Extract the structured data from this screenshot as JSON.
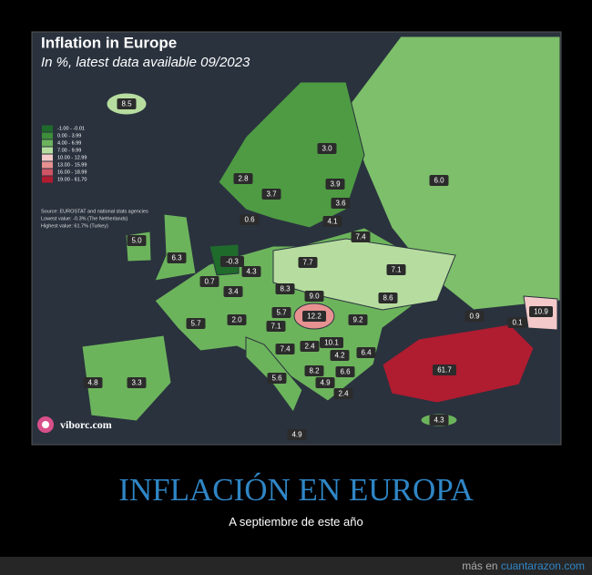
{
  "map": {
    "title": "Inflation in Europe",
    "subtitle": "In %, latest data available 09/2023",
    "legend": [
      {
        "label": "-1.00 - -0.01",
        "color": "#1f6b2c"
      },
      {
        "label": "0.00 - 3.99",
        "color": "#3d8d3a"
      },
      {
        "label": "4.00 - 6.99",
        "color": "#6cb45c"
      },
      {
        "label": "7.00 - 9.99",
        "color": "#b6dd9f"
      },
      {
        "label": "10.00 - 12.99",
        "color": "#f4c9c9"
      },
      {
        "label": "13.00 - 15.99",
        "color": "#e79191"
      },
      {
        "label": "16.00 - 18.99",
        "color": "#cf5465"
      },
      {
        "label": "19.00 - 61.70",
        "color": "#b01c30"
      }
    ],
    "notes": [
      "Source: EUROSTAT and national stats agencies",
      "Lowest value: -0.3% (The Netherlands)",
      "Highest value: 61.7% (Turkey)"
    ],
    "labels": [
      "8.5",
      "3.0",
      "2.8",
      "3.7",
      "3.9",
      "6.0",
      "3.6",
      "0.6",
      "4.1",
      "5.0",
      "7.4",
      "6.3",
      "-0.3",
      "4.3",
      "7.7",
      "7.1",
      "0.7",
      "3.4",
      "8.3",
      "9.0",
      "8.6",
      "5.7",
      "2.0",
      "5.7",
      "12.2",
      "9.2",
      "0.9",
      "0.1",
      "10.9",
      "7.1",
      "7.4",
      "2.4",
      "10.1",
      "4.2",
      "6.4",
      "61.7",
      "5.6",
      "8.2",
      "6.6",
      "4.9",
      "4.8",
      "3.3",
      "2.4",
      "4.3",
      "4.9"
    ],
    "logo": "viborc.com"
  },
  "caption": {
    "title": "INFLACIÓN EN EUROPA",
    "subtitle": "A septiembre de este año"
  },
  "footer": {
    "prefix": "más en",
    "link": "cuantarazon.com"
  }
}
